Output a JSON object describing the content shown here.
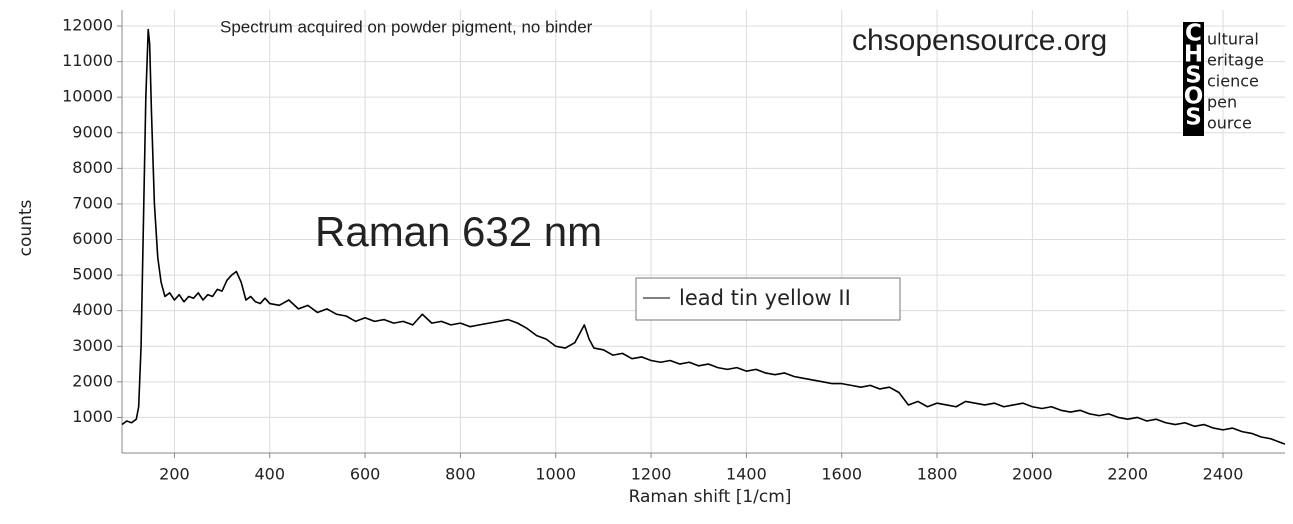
{
  "chart_data": {
    "type": "line",
    "x_label": "Raman shift [1/cm]",
    "y_label": "counts",
    "annotations": [
      "Spectrum acquired on powder pigment, no binder",
      "Raman 632 nm"
    ],
    "watermark": "chsopensource.org",
    "logo": {
      "letters": [
        "C",
        "H",
        "S",
        "O",
        "S"
      ],
      "words": [
        "ultural",
        "eritage",
        "cience",
        "pen",
        "ource"
      ]
    },
    "grid": true,
    "legend": "upper center",
    "xlim": [
      90,
      2530
    ],
    "ylim": [
      0,
      12450
    ],
    "xticks": [
      200,
      400,
      600,
      800,
      1000,
      1200,
      1400,
      1600,
      1800,
      2000,
      2200,
      2400
    ],
    "yticks": [
      1000,
      2000,
      3000,
      4000,
      5000,
      6000,
      7000,
      8000,
      9000,
      10000,
      11000,
      12000
    ],
    "x": [
      90,
      100,
      110,
      120,
      125,
      130,
      135,
      140,
      145,
      148,
      152,
      158,
      165,
      172,
      180,
      190,
      200,
      210,
      220,
      230,
      240,
      250,
      260,
      270,
      280,
      290,
      300,
      310,
      320,
      330,
      340,
      350,
      360,
      370,
      380,
      390,
      400,
      420,
      440,
      460,
      480,
      500,
      520,
      540,
      560,
      580,
      600,
      620,
      640,
      660,
      680,
      700,
      720,
      740,
      760,
      780,
      800,
      820,
      840,
      860,
      880,
      900,
      920,
      940,
      960,
      980,
      1000,
      1020,
      1040,
      1060,
      1070,
      1080,
      1100,
      1120,
      1140,
      1160,
      1180,
      1200,
      1220,
      1240,
      1260,
      1280,
      1300,
      1320,
      1340,
      1360,
      1380,
      1400,
      1420,
      1440,
      1460,
      1480,
      1500,
      1520,
      1540,
      1560,
      1580,
      1600,
      1620,
      1640,
      1660,
      1680,
      1700,
      1720,
      1740,
      1760,
      1780,
      1800,
      1820,
      1840,
      1860,
      1880,
      1900,
      1920,
      1940,
      1960,
      1980,
      2000,
      2020,
      2040,
      2060,
      2080,
      2100,
      2120,
      2140,
      2160,
      2180,
      2200,
      2220,
      2240,
      2260,
      2280,
      2300,
      2320,
      2340,
      2360,
      2380,
      2400,
      2420,
      2440,
      2460,
      2480,
      2500,
      2520,
      2530
    ],
    "series": [
      {
        "name": "lead tin yellow II",
        "color": "#000000",
        "values": [
          800,
          900,
          850,
          950,
          1300,
          3000,
          6500,
          10000,
          11900,
          11500,
          9500,
          7000,
          5500,
          4800,
          4400,
          4500,
          4300,
          4450,
          4250,
          4400,
          4350,
          4500,
          4300,
          4450,
          4400,
          4600,
          4550,
          4850,
          5000,
          5100,
          4800,
          4300,
          4400,
          4250,
          4200,
          4350,
          4200,
          4150,
          4300,
          4050,
          4150,
          3950,
          4050,
          3900,
          3850,
          3700,
          3800,
          3700,
          3750,
          3650,
          3700,
          3600,
          3900,
          3650,
          3700,
          3600,
          3650,
          3550,
          3600,
          3650,
          3700,
          3750,
          3650,
          3500,
          3300,
          3200,
          3000,
          2950,
          3100,
          3600,
          3200,
          2950,
          2900,
          2750,
          2800,
          2650,
          2700,
          2600,
          2550,
          2600,
          2500,
          2550,
          2450,
          2500,
          2400,
          2350,
          2400,
          2300,
          2350,
          2250,
          2200,
          2250,
          2150,
          2100,
          2050,
          2000,
          1950,
          1950,
          1900,
          1850,
          1900,
          1800,
          1850,
          1700,
          1350,
          1450,
          1300,
          1400,
          1350,
          1300,
          1450,
          1400,
          1350,
          1400,
          1300,
          1350,
          1400,
          1300,
          1250,
          1300,
          1200,
          1150,
          1200,
          1100,
          1050,
          1100,
          1000,
          950,
          1000,
          900,
          950,
          850,
          800,
          850,
          750,
          800,
          700,
          650,
          700,
          600,
          550,
          450,
          400,
          300,
          250
        ]
      }
    ]
  }
}
